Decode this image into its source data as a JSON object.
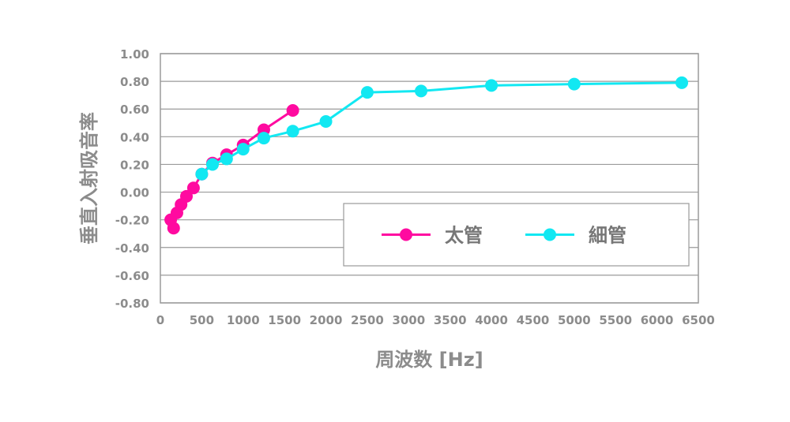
{
  "chart_data": {
    "type": "line",
    "title": "",
    "xlabel": "周波数 [Hz]",
    "ylabel": "垂直入射吸音率",
    "xlim": [
      0,
      6500
    ],
    "ylim": [
      -0.8,
      1.0
    ],
    "x_ticks": [
      0,
      500,
      1000,
      1500,
      2000,
      2500,
      3000,
      3500,
      4000,
      4500,
      5000,
      5500,
      6000,
      6500
    ],
    "x_tick_labels": [
      "0",
      "500",
      "1000",
      "1500",
      "2000",
      "2500",
      "3000",
      "3500",
      "4000",
      "4500",
      "5000",
      "5500",
      "6000",
      "6500"
    ],
    "y_ticks": [
      1.0,
      0.8,
      0.6,
      0.4,
      0.2,
      0.0,
      -0.2,
      -0.4,
      -0.6,
      -0.8
    ],
    "y_tick_labels": [
      "1.00",
      "0.80",
      "0.60",
      "0.40",
      "0.20",
      "0.00",
      "-0.20",
      "-0.40",
      "-0.60",
      "-0.80"
    ],
    "grid": true,
    "legend_position": "inside-lower-right",
    "series": [
      {
        "name": "太管",
        "color": "#ff0aa0",
        "x": [
          125,
          160,
          200,
          250,
          315,
          400,
          500,
          630,
          800,
          1000,
          1250,
          1600
        ],
        "y": [
          -0.2,
          -0.26,
          -0.15,
          -0.09,
          -0.03,
          0.03,
          0.13,
          0.21,
          0.27,
          0.34,
          0.45,
          0.59
        ]
      },
      {
        "name": "細管",
        "color": "#12e8f2",
        "x": [
          500,
          630,
          800,
          1000,
          1250,
          1600,
          2000,
          2500,
          3150,
          4000,
          5000,
          6300
        ],
        "y": [
          0.13,
          0.2,
          0.24,
          0.31,
          0.39,
          0.44,
          0.51,
          0.72,
          0.73,
          0.77,
          0.78,
          0.79
        ]
      }
    ]
  }
}
